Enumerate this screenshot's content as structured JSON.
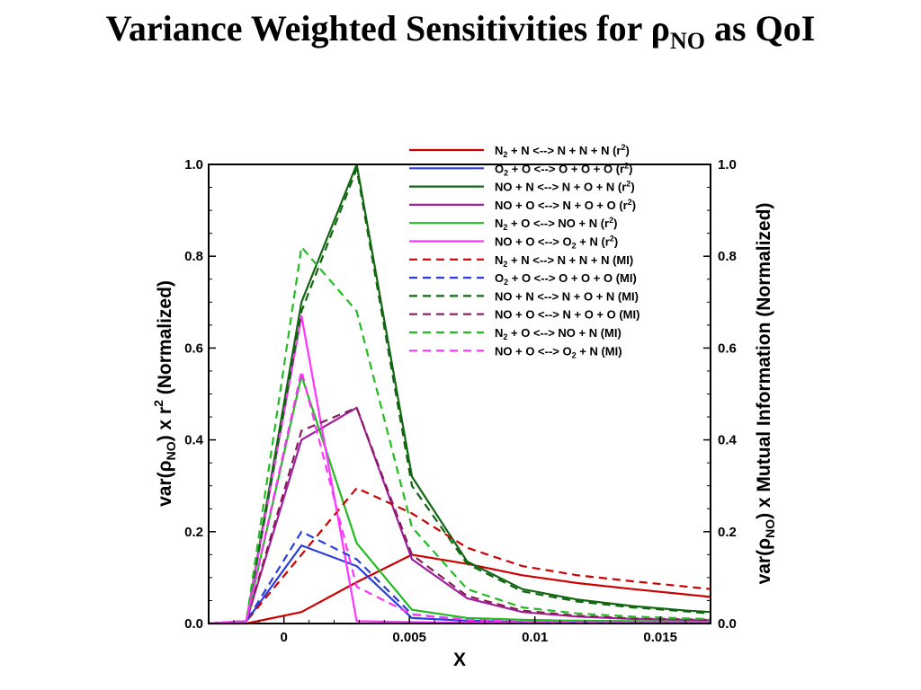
{
  "title": {
    "prefix": "Variance Weighted Sensitivities for ρ",
    "sub": "NO",
    "suffix": " as QoI"
  },
  "chart_data": {
    "type": "line",
    "xlabel": "X",
    "ylabel_left": {
      "pre": "var(ρ",
      "sub": "NO",
      "mid": ") x r",
      "sup": "2",
      "post": " (Normalized)"
    },
    "ylabel_right": {
      "pre": "var(ρ",
      "sub": "NO",
      "post": ") x Mutual Information (Normalized)"
    },
    "xlim": [
      -0.003,
      0.017
    ],
    "ylim": [
      0,
      1.0
    ],
    "x_ticks": [
      0,
      0.005,
      0.01,
      0.015
    ],
    "x_tick_labels": [
      "0",
      "0.005",
      "0.01",
      "0.015"
    ],
    "y_ticks": [
      0,
      0.2,
      0.4,
      0.6,
      0.8,
      1.0
    ],
    "y_tick_labels": [
      "0.0",
      "0.2",
      "0.4",
      "0.6",
      "0.8",
      "1.0"
    ],
    "grid": false,
    "legend_position": "top-right",
    "x": [
      -0.003,
      -0.0015,
      0.0007,
      0.0029,
      0.0051,
      0.0073,
      0.0095,
      0.0117,
      0.0139,
      0.0161,
      0.017
    ],
    "series": [
      {
        "name": "N₂ + N <--> N + N + N (r²)",
        "legend": {
          "a": "N",
          "as": "2",
          "b": " + N <--> N + N + N (r",
          "sup": "2",
          "c": ")"
        },
        "color": "#cc0000",
        "dash": false,
        "values": [
          0.0,
          0.0,
          0.025,
          0.09,
          0.15,
          0.13,
          0.105,
          0.088,
          0.075,
          0.063,
          0.058
        ]
      },
      {
        "name": "O₂ + O <--> O + O + O (r²)",
        "legend": {
          "a": "O",
          "as": "2",
          "b": " + O <--> O + O + O (r",
          "sup": "2",
          "c": ")"
        },
        "color": "#2a3ddb",
        "dash": false,
        "values": [
          0.0,
          0.005,
          0.17,
          0.125,
          0.012,
          0.006,
          0.003,
          0.002,
          0.001,
          0.001,
          0.001
        ]
      },
      {
        "name": "NO + N <--> N + O + N (r²)",
        "legend": {
          "a": "NO + N <--> N + O + N (r",
          "as": "",
          "b": "",
          "sup": "2",
          "c": ")"
        },
        "color": "#116611",
        "dash": false,
        "values": [
          0.0,
          0.005,
          0.7,
          1.0,
          0.32,
          0.135,
          0.075,
          0.052,
          0.038,
          0.028,
          0.025
        ]
      },
      {
        "name": "NO + O <--> N + O + O (r²)",
        "legend": {
          "a": "NO + O <--> N + O + O (r",
          "as": "",
          "b": "",
          "sup": "2",
          "c": ")"
        },
        "color": "#a020a0",
        "dash": false,
        "values": [
          0.0,
          0.005,
          0.4,
          0.47,
          0.14,
          0.055,
          0.025,
          0.015,
          0.01,
          0.008,
          0.007
        ]
      },
      {
        "name": "N₂ + O <--> NO + N (r²)",
        "legend": {
          "a": "N",
          "as": "2",
          "b": " + O <--> NO + N (r",
          "sup": "2",
          "c": ")"
        },
        "color": "#22bb22",
        "dash": false,
        "values": [
          0.0,
          0.005,
          0.54,
          0.175,
          0.03,
          0.012,
          0.008,
          0.006,
          0.005,
          0.004,
          0.004
        ]
      },
      {
        "name": "NO + O <--> O₂ + N (r²)",
        "legend": {
          "a": "NO + O <--> O",
          "as": "2",
          "b": " + N (r",
          "sup": "2",
          "c": ")"
        },
        "color": "#ff33ff",
        "dash": false,
        "values": [
          0.0,
          0.005,
          0.67,
          0.005,
          0.003,
          0.002,
          0.002,
          0.001,
          0.001,
          0.001,
          0.001
        ]
      },
      {
        "name": "N₂ + N <--> N + N + N (MI)",
        "legend": {
          "a": "N",
          "as": "2",
          "b": " + N <--> N + N + N (MI)",
          "sup": "",
          "c": ""
        },
        "color": "#cc0000",
        "dash": true,
        "values": [
          0.0,
          0.005,
          0.15,
          0.295,
          0.24,
          0.165,
          0.125,
          0.105,
          0.092,
          0.08,
          0.075
        ]
      },
      {
        "name": "O₂ + O <--> O + O + O (MI)",
        "legend": {
          "a": "O",
          "as": "2",
          "b": " + O <--> O + O + O (MI)",
          "sup": "",
          "c": ""
        },
        "color": "#2a3ddb",
        "dash": true,
        "values": [
          0.0,
          0.005,
          0.2,
          0.14,
          0.02,
          0.008,
          0.004,
          0.002,
          0.001,
          0.001,
          0.001
        ]
      },
      {
        "name": "NO + N <--> N + O + N (MI)",
        "legend": {
          "a": "NO + N <--> N + O + N (MI)",
          "as": "",
          "b": "",
          "sup": "",
          "c": ""
        },
        "color": "#116611",
        "dash": true,
        "values": [
          0.0,
          0.005,
          0.68,
          0.99,
          0.3,
          0.13,
          0.07,
          0.048,
          0.035,
          0.026,
          0.022
        ]
      },
      {
        "name": "NO + O <--> N + O + O (MI)",
        "legend": {
          "a": "NO + O <--> N + O + O (MI)",
          "as": "",
          "b": "",
          "sup": "",
          "c": ""
        },
        "color": "#8b1a5a",
        "dash": true,
        "values": [
          0.0,
          0.005,
          0.42,
          0.47,
          0.15,
          0.06,
          0.028,
          0.017,
          0.011,
          0.009,
          0.008
        ]
      },
      {
        "name": "N₂ + O <--> NO + N (MI)",
        "legend": {
          "a": "N",
          "as": "2",
          "b": " + O <--> NO + N (MI)",
          "sup": "",
          "c": ""
        },
        "color": "#22bb22",
        "dash": true,
        "values": [
          0.0,
          0.005,
          0.82,
          0.68,
          0.21,
          0.075,
          0.035,
          0.022,
          0.015,
          0.011,
          0.01
        ]
      },
      {
        "name": "NO + O <--> O₂ + N (MI)",
        "legend": {
          "a": "NO + O <--> O",
          "as": "2",
          "b": " + N (MI)",
          "sup": "",
          "c": ""
        },
        "color": "#ff33ff",
        "dash": true,
        "values": [
          0.0,
          0.005,
          0.55,
          0.08,
          0.02,
          0.008,
          0.004,
          0.002,
          0.001,
          0.001,
          0.001
        ]
      }
    ]
  }
}
